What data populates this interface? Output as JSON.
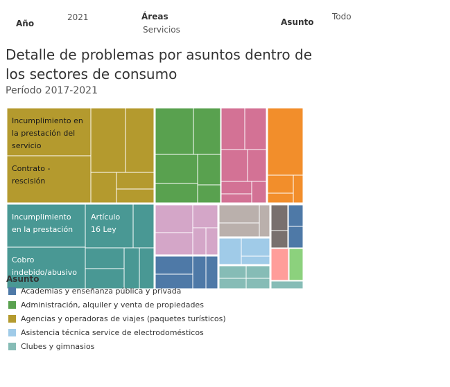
{
  "filters": {
    "year_label": "Año",
    "year_value": "2021",
    "areas_label": "Áreas",
    "areas_value": "Servicios",
    "subject_label": "Asunto",
    "subject_value": "Todo"
  },
  "header": {
    "title_line1": "Detalle de problemas por asuntos dentro de",
    "title_line2": "los sectores de consumo",
    "subtitle": "Período 2017-2021"
  },
  "treemap_labels": {
    "l1": "Incumplimiento en",
    "l2": "la prestación del",
    "l3": "servicio",
    "l4": "Contrato -",
    "l5": "rescisión",
    "l6": "Incumplimiento",
    "l7": "en la prestación",
    "l8": "Artículo",
    "l9": "16 Ley",
    "l10": "Cobro",
    "l11": "indebido/abusivo"
  },
  "legend": {
    "title": "Asunto",
    "items": [
      {
        "label": "Academias y enseñanza pública y privada",
        "color": "#4e79a7"
      },
      {
        "label": "Administración, alquiler y venta de propiedades",
        "color": "#59a14f"
      },
      {
        "label": "Agencias y operadoras de viajes (paquetes turísticos)",
        "color": "#b49a2e"
      },
      {
        "label": "Asistencia técnica service de electrodomésticos",
        "color": "#a0cbe8"
      },
      {
        "label": "Clubes y gimnasios",
        "color": "#86bcb6"
      }
    ]
  },
  "colors": {
    "gold": "#b49a2e",
    "teal": "#499894",
    "green": "#59a14f",
    "pink": "#d37295",
    "orange": "#f28e2b",
    "lilac": "#d4a6c8",
    "blue": "#4e79a7",
    "taupe": "#bab0ac",
    "brown": "#79706e",
    "lightblue": "#a0cbe8",
    "lightteal": "#86bcb6",
    "salmon": "#ff9d9a",
    "lightgreen": "#8cd17d"
  }
}
